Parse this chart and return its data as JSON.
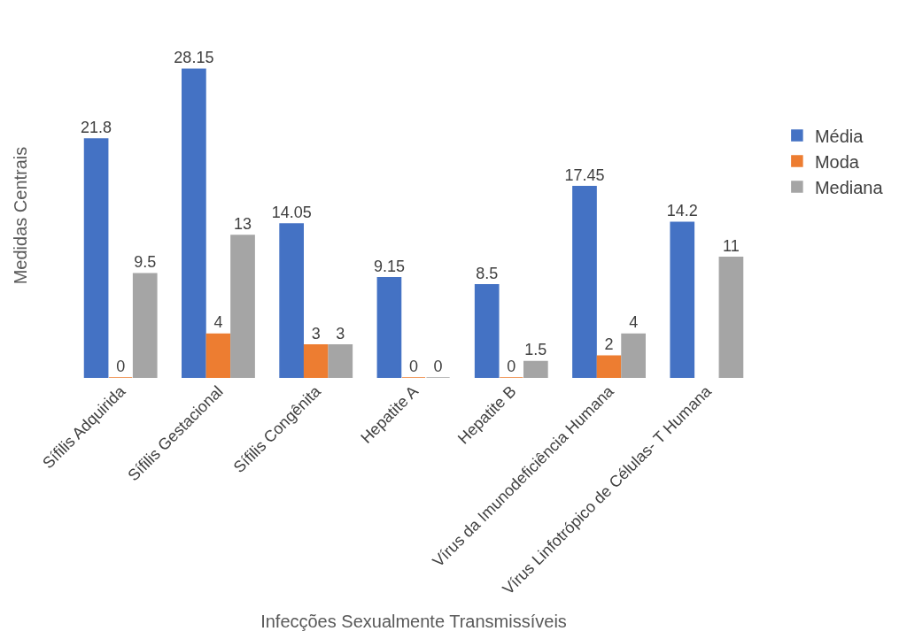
{
  "chart_data": {
    "type": "bar",
    "xlabel": "Infecções Sexualmente Transmissíveis",
    "ylabel": "Medidas Centrais",
    "categories": [
      "Sífilis Adquirida",
      "Sífilis Gestacional",
      "Sífilis Congênita",
      "Hepatite A",
      "Hepatite B",
      "Vírus da Imunodeficiência Humana",
      "Vírus Linfotrópico de Células- T Humana"
    ],
    "series": [
      {
        "name": "Média",
        "color": "#4472c4",
        "values": [
          21.8,
          28.15,
          14.05,
          9.15,
          8.5,
          17.45,
          14.2
        ]
      },
      {
        "name": "Moda",
        "color": "#ed7d31",
        "values": [
          0,
          4,
          3,
          0,
          0,
          2,
          null
        ]
      },
      {
        "name": "Mediana",
        "color": "#a5a5a5",
        "values": [
          9.5,
          13,
          3,
          0,
          1.5,
          4,
          11
        ]
      }
    ],
    "data_labels": true,
    "legend": "right"
  }
}
